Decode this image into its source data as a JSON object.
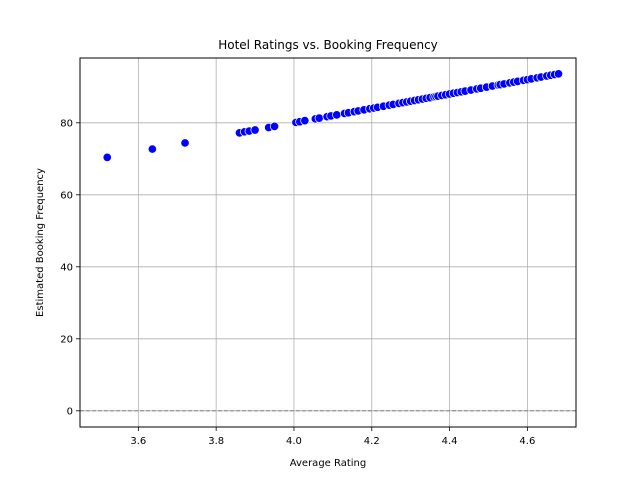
{
  "chart_data": {
    "type": "scatter",
    "title": "Hotel Ratings vs. Booking Frequency",
    "xlabel": "Average Rating",
    "ylabel": "Estimated Booking Frequency",
    "xlim": [
      3.45,
      4.725
    ],
    "ylim": [
      -4.5,
      98
    ],
    "xticks": [
      3.6,
      3.8,
      4.0,
      4.2,
      4.4,
      4.6
    ],
    "yticks": [
      0,
      20,
      40,
      60,
      80
    ],
    "xtick_labels": [
      "3.6",
      "3.8",
      "4.0",
      "4.2",
      "4.4",
      "4.6"
    ],
    "ytick_labels": [
      "0",
      "20",
      "40",
      "60",
      "80"
    ],
    "grid": true,
    "reference_line": {
      "y": 0,
      "style": "dashed",
      "color": "#808080"
    },
    "marker_color": "#0000ff",
    "points": [
      [
        3.52,
        70.4
      ],
      [
        3.636,
        72.7
      ],
      [
        3.72,
        74.4
      ],
      [
        3.86,
        77.2
      ],
      [
        3.873,
        77.5
      ],
      [
        3.885,
        77.7
      ],
      [
        3.9,
        78.0
      ],
      [
        3.935,
        78.7
      ],
      [
        3.95,
        79.0
      ],
      [
        4.005,
        80.1
      ],
      [
        4.015,
        80.3
      ],
      [
        4.028,
        80.6
      ],
      [
        4.055,
        81.1
      ],
      [
        4.065,
        81.3
      ],
      [
        4.085,
        81.7
      ],
      [
        4.095,
        81.9
      ],
      [
        4.11,
        82.2
      ],
      [
        4.13,
        82.6
      ],
      [
        4.14,
        82.8
      ],
      [
        4.155,
        83.1
      ],
      [
        4.165,
        83.3
      ],
      [
        4.18,
        83.6
      ],
      [
        4.195,
        83.9
      ],
      [
        4.205,
        84.1
      ],
      [
        4.215,
        84.3
      ],
      [
        4.23,
        84.6
      ],
      [
        4.245,
        84.9
      ],
      [
        4.255,
        85.1
      ],
      [
        4.27,
        85.4
      ],
      [
        4.28,
        85.6
      ],
      [
        4.29,
        85.8
      ],
      [
        4.3,
        86.0
      ],
      [
        4.31,
        86.2
      ],
      [
        4.32,
        86.4
      ],
      [
        4.33,
        86.6
      ],
      [
        4.34,
        86.8
      ],
      [
        4.35,
        87.0
      ],
      [
        4.36,
        87.2
      ],
      [
        4.365,
        87.3
      ],
      [
        4.37,
        87.4
      ],
      [
        4.38,
        87.6
      ],
      [
        4.39,
        87.8
      ],
      [
        4.4,
        88.0
      ],
      [
        4.41,
        88.2
      ],
      [
        4.42,
        88.4
      ],
      [
        4.43,
        88.6
      ],
      [
        4.44,
        88.8
      ],
      [
        4.455,
        89.1
      ],
      [
        4.47,
        89.4
      ],
      [
        4.48,
        89.6
      ],
      [
        4.495,
        89.9
      ],
      [
        4.51,
        90.2
      ],
      [
        4.525,
        90.5
      ],
      [
        4.53,
        90.6
      ],
      [
        4.54,
        90.8
      ],
      [
        4.555,
        91.1
      ],
      [
        4.565,
        91.3
      ],
      [
        4.575,
        91.5
      ],
      [
        4.59,
        91.8
      ],
      [
        4.6,
        92.0
      ],
      [
        4.61,
        92.2
      ],
      [
        4.625,
        92.5
      ],
      [
        4.635,
        92.7
      ],
      [
        4.65,
        93.0
      ],
      [
        4.66,
        93.2
      ],
      [
        4.67,
        93.4
      ],
      [
        4.68,
        93.6
      ]
    ]
  }
}
